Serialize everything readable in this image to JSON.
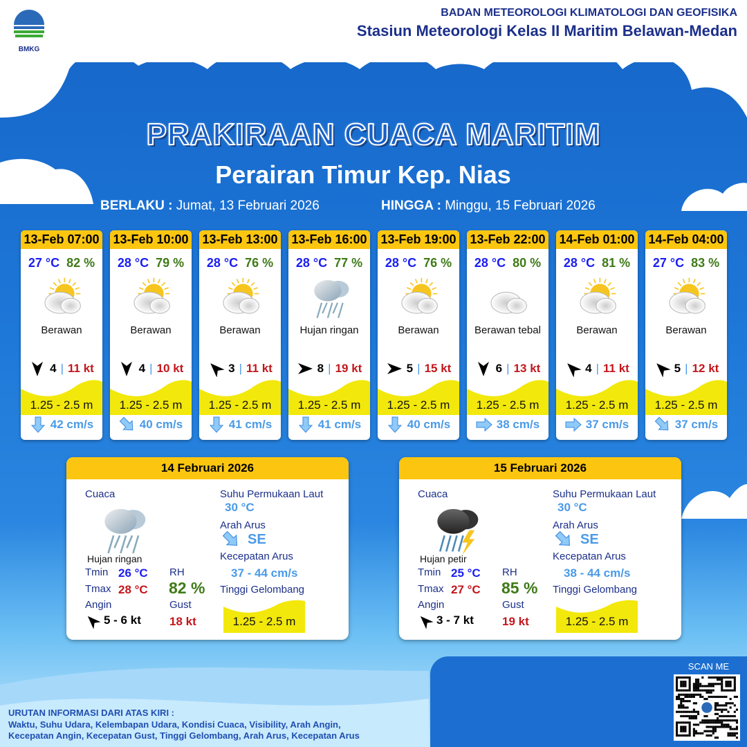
{
  "header": {
    "agency": "BADAN METEOROLOGI KLIMATOLOGI DAN GEOFISIKA",
    "station": "Stasiun Meteorologi Kelas II Maritim Belawan-Medan",
    "logo_text": "BMKG"
  },
  "title": "PRAKIRAAN CUACA MARITIM",
  "subtitle": "Perairan Timur Kep. Nias",
  "validity": {
    "from_label": "BERLAKU :",
    "from": "Jumat, 13 Februari 2026",
    "to_label": "HINGGA :",
    "to": "Minggu, 15 Februari 2026"
  },
  "colors": {
    "accent_yellow": "#fcc610",
    "wave_yellow": "#f2e80c",
    "temp_blue": "#1a1ef0",
    "rh_green": "#3f7a18",
    "gust_red": "#c4161c",
    "current_blue": "#4a9ae8"
  },
  "forecasts": [
    {
      "time": "13-Feb 07:00",
      "temp": "27 °C",
      "rh": "82 %",
      "icon": "partly-cloudy",
      "condition": "Berawan",
      "wind_dir": "S",
      "wind_speed": "4",
      "gust": "11 kt",
      "wave": "1.25 - 2.5 m",
      "current_dir": "S",
      "current_speed": "42 cm/s"
    },
    {
      "time": "13-Feb 10:00",
      "temp": "28 °C",
      "rh": "79 %",
      "icon": "partly-cloudy",
      "condition": "Berawan",
      "wind_dir": "S",
      "wind_speed": "4",
      "gust": "10 kt",
      "wave": "1.25 - 2.5 m",
      "current_dir": "SE",
      "current_speed": "40 cm/s"
    },
    {
      "time": "13-Feb 13:00",
      "temp": "28 °C",
      "rh": "76 %",
      "icon": "partly-cloudy",
      "condition": "Berawan",
      "wind_dir": "NW",
      "wind_speed": "3",
      "gust": "11 kt",
      "wave": "1.25 - 2.5 m",
      "current_dir": "S",
      "current_speed": "41 cm/s"
    },
    {
      "time": "13-Feb 16:00",
      "temp": "28 °C",
      "rh": "77 %",
      "icon": "light-rain",
      "condition": "Hujan ringan",
      "wind_dir": "E",
      "wind_speed": "8",
      "gust": "19 kt",
      "wave": "1.25 - 2.5 m",
      "current_dir": "S",
      "current_speed": "41 cm/s"
    },
    {
      "time": "13-Feb 19:00",
      "temp": "28 °C",
      "rh": "76 %",
      "icon": "partly-cloudy",
      "condition": "Berawan",
      "wind_dir": "E",
      "wind_speed": "5",
      "gust": "15 kt",
      "wave": "1.25 - 2.5 m",
      "current_dir": "S",
      "current_speed": "40 cm/s"
    },
    {
      "time": "13-Feb 22:00",
      "temp": "28 °C",
      "rh": "80 %",
      "icon": "overcast",
      "condition": "Berawan tebal",
      "wind_dir": "S",
      "wind_speed": "6",
      "gust": "13 kt",
      "wave": "1.25 - 2.5 m",
      "current_dir": "E",
      "current_speed": "38 cm/s"
    },
    {
      "time": "14-Feb 01:00",
      "temp": "28 °C",
      "rh": "81 %",
      "icon": "partly-cloudy",
      "condition": "Berawan",
      "wind_dir": "NW",
      "wind_speed": "4",
      "gust": "11 kt",
      "wave": "1.25 - 2.5 m",
      "current_dir": "E",
      "current_speed": "37 cm/s"
    },
    {
      "time": "14-Feb 04:00",
      "temp": "27 °C",
      "rh": "83 %",
      "icon": "partly-cloudy",
      "condition": "Berawan",
      "wind_dir": "NW",
      "wind_speed": "5",
      "gust": "12 kt",
      "wave": "1.25 - 2.5 m",
      "current_dir": "SE",
      "current_speed": "37 cm/s"
    }
  ],
  "labels": {
    "cuaca": "Cuaca",
    "sst": "Suhu Permukaan Laut",
    "arah_arus": "Arah Arus",
    "kecepatan_arus": "Kecepatan Arus",
    "tinggi_gelombang": "Tinggi Gelombang",
    "tmin": "Tmin",
    "tmax": "Tmax",
    "rh": "RH",
    "angin": "Angin",
    "gust": "Gust"
  },
  "daily": [
    {
      "date": "14 Februari 2026",
      "icon": "light-rain",
      "condition": "Hujan ringan",
      "tmin": "26 °C",
      "tmax": "28 °C",
      "rh": "82 %",
      "wind_dir": "NW",
      "wind": "5  - 6 kt",
      "gust": "18 kt",
      "sst": "30 °C",
      "current_dir": "SE",
      "current_dir_label": "SE",
      "current_speed": "37  - 44 cm/s",
      "wave": "1.25 - 2.5 m"
    },
    {
      "date": "15 Februari 2026",
      "icon": "thunderstorm",
      "condition": "Hujan petir",
      "tmin": "25 °C",
      "tmax": "27 °C",
      "rh": "85 %",
      "wind_dir": "NW",
      "wind": "3  - 7 kt",
      "gust": "19 kt",
      "sst": "30 °C",
      "current_dir": "SE",
      "current_dir_label": "SE",
      "current_speed": "38  - 44 cm/s",
      "wave": "1.25 - 2.5 m"
    }
  ],
  "footer": {
    "scan": "SCAN ME",
    "legend_title": "URUTAN INFORMASI DARI ATAS KIRI :",
    "legend_line1": "Waktu, Suhu Udara, Kelembapan Udara, Kondisi Cuaca, Visibility, Arah Angin,",
    "legend_line2": "Kecepatan Angin, Kecepatan Gust, Tinggi Gelombang, Arah Arus, Kecepatan Arus"
  }
}
